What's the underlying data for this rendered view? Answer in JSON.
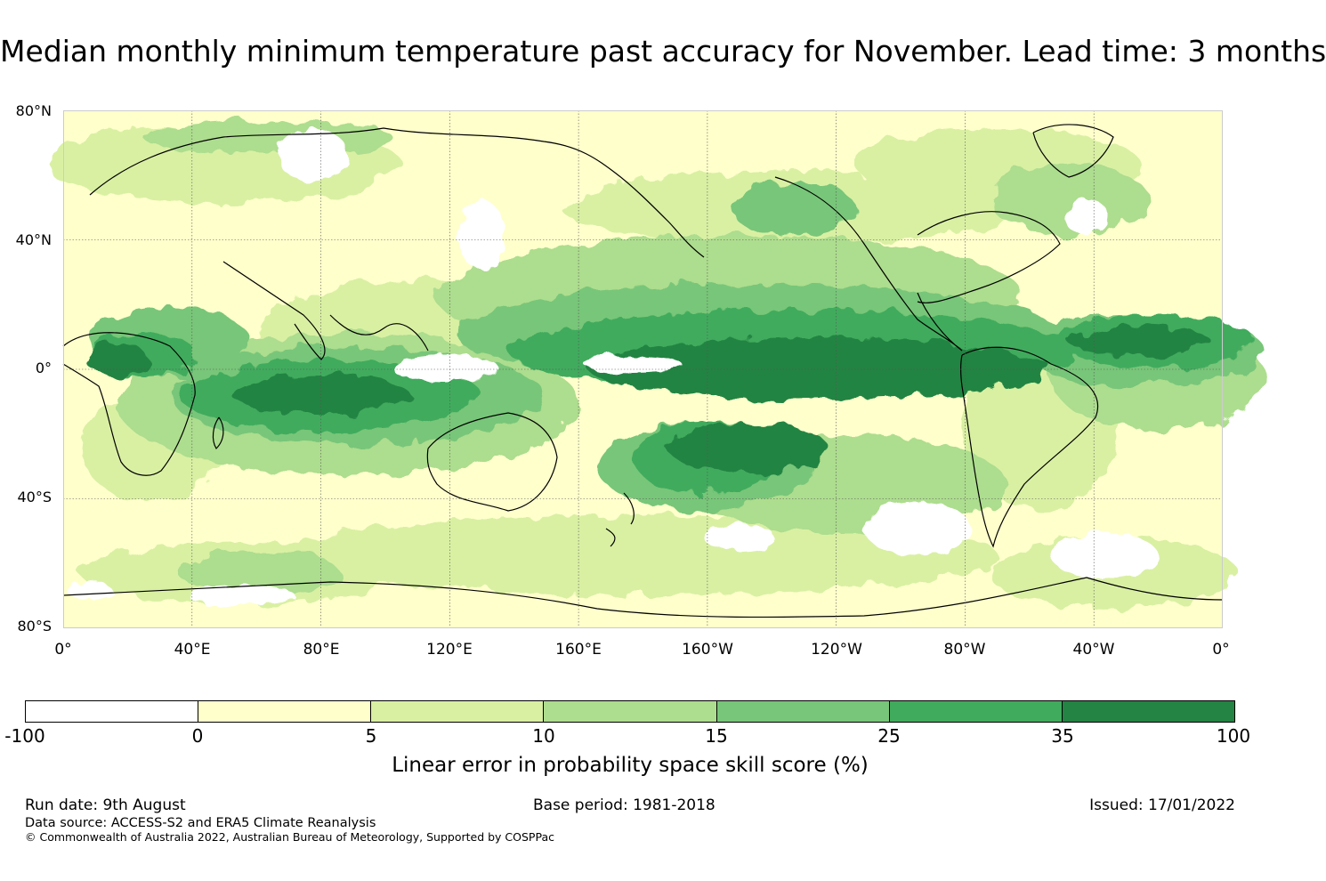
{
  "title": "Median monthly minimum temperature past accuracy for November. Lead time: 3 months",
  "lat_labels": [
    "80°N",
    "40°N",
    "0°",
    "40°S",
    "80°S"
  ],
  "lon_labels": [
    "0°",
    "40°E",
    "80°E",
    "120°E",
    "160°E",
    "160°W",
    "120°W",
    "80°W",
    "40°W",
    "0°"
  ],
  "legend": {
    "ticks": [
      "-100",
      "0",
      "5",
      "10",
      "15",
      "25",
      "35",
      "100"
    ],
    "colors": [
      "#ffffff",
      "#ffffcc",
      "#d9f0a3",
      "#addd8e",
      "#78c679",
      "#41ab5d",
      "#238443"
    ],
    "label": "Linear error in probability space skill score (%)"
  },
  "footer": {
    "run_date": "Run date: 9th August",
    "base_period": "Base period: 1981-2018",
    "issued": "Issued: 17/01/2022",
    "data_source": "Data source: ACCESS-S2 and ERA5 Climate Reanalysis",
    "copyright": "© Commonwealth of Australia 2022, Australian Bureau of Meteorology, Supported by COSPPac"
  }
}
